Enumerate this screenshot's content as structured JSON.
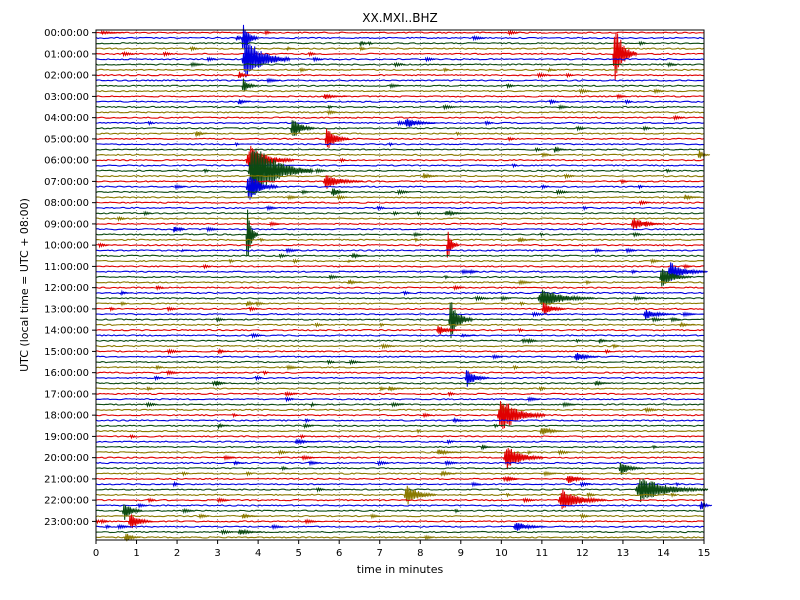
{
  "chart_data": {
    "type": "line",
    "subtype": "helicorder",
    "title": "XX.MXI..BHZ",
    "xlabel": "time in minutes",
    "ylabel": "UTC (local time = UTC + 08:00)",
    "xlim": [
      0,
      15
    ],
    "x_ticks": [
      "0",
      "1",
      "2",
      "3",
      "4",
      "5",
      "6",
      "7",
      "8",
      "9",
      "10",
      "11",
      "12",
      "13",
      "14",
      "15"
    ],
    "y_ticks": [
      "00:00:00",
      "01:00:00",
      "02:00:00",
      "03:00:00",
      "04:00:00",
      "05:00:00",
      "06:00:00",
      "07:00:00",
      "08:00:00",
      "09:00:00",
      "10:00:00",
      "11:00:00",
      "12:00:00",
      "13:00:00",
      "14:00:00",
      "15:00:00",
      "16:00:00",
      "17:00:00",
      "18:00:00",
      "19:00:00",
      "20:00:00",
      "21:00:00",
      "22:00:00",
      "23:00:00"
    ],
    "rows_per_hour": 4,
    "grid": "vertical dotted lines at each minute",
    "trace_colors": [
      "#e00000",
      "#0000e0",
      "#0c4a12",
      "#8a7a00"
    ],
    "baseline_colors": [
      "#cc0000",
      "#0000cc",
      "#0a3d10",
      "#7a6a00"
    ],
    "events": [
      {
        "row": 0,
        "x": 0.1,
        "amp": 0.3,
        "dur": 0.6
      },
      {
        "row": 1,
        "x": 3.45,
        "amp": 0.6,
        "dur": 0.3
      },
      {
        "row": 1,
        "x": 3.6,
        "amp": 3.5,
        "dur": 0.4
      },
      {
        "row": 2,
        "x": 6.5,
        "amp": 0.5,
        "dur": 0.3
      },
      {
        "row": 3,
        "x": 4.7,
        "amp": 0.4,
        "dur": 0.2
      },
      {
        "row": 4,
        "x": 12.75,
        "amp": 6.0,
        "dur": 0.6
      },
      {
        "row": 5,
        "x": 3.6,
        "amp": 4.5,
        "dur": 1.2
      },
      {
        "row": 7,
        "x": 11.15,
        "amp": 0.4,
        "dur": 0.2
      },
      {
        "row": 8,
        "x": 3.5,
        "amp": 1.0,
        "dur": 0.3
      },
      {
        "row": 10,
        "x": 3.6,
        "amp": 1.5,
        "dur": 0.4
      },
      {
        "row": 12,
        "x": 5.6,
        "amp": 0.5,
        "dur": 0.6
      },
      {
        "row": 13,
        "x": 3.5,
        "amp": 0.7,
        "dur": 0.3
      },
      {
        "row": 17,
        "x": 7.6,
        "amp": 1.0,
        "dur": 0.8
      },
      {
        "row": 18,
        "x": 4.8,
        "amp": 2.3,
        "dur": 0.6
      },
      {
        "row": 19,
        "x": 2.45,
        "amp": 0.8,
        "dur": 0.3
      },
      {
        "row": 20,
        "x": 5.65,
        "amp": 2.5,
        "dur": 0.6
      },
      {
        "row": 22,
        "x": 11.3,
        "amp": 0.7,
        "dur": 0.3
      },
      {
        "row": 23,
        "x": 14.85,
        "amp": 1.0,
        "dur": 0.3
      },
      {
        "row": 24,
        "x": 3.7,
        "amp": 3.0,
        "dur": 1.2
      },
      {
        "row": 26,
        "x": 3.75,
        "amp": 6.0,
        "dur": 1.6
      },
      {
        "row": 27,
        "x": 8.05,
        "amp": 0.6,
        "dur": 0.4
      },
      {
        "row": 28,
        "x": 5.6,
        "amp": 1.5,
        "dur": 1.0
      },
      {
        "row": 29,
        "x": 3.7,
        "amp": 3.0,
        "dur": 0.8
      },
      {
        "row": 30,
        "x": 5.8,
        "amp": 1.0,
        "dur": 0.4
      },
      {
        "row": 31,
        "x": 14.5,
        "amp": 0.6,
        "dur": 0.4
      },
      {
        "row": 34,
        "x": 8.6,
        "amp": 0.5,
        "dur": 0.6
      },
      {
        "row": 36,
        "x": 13.2,
        "amp": 1.2,
        "dur": 0.8
      },
      {
        "row": 37,
        "x": 1.9,
        "amp": 0.5,
        "dur": 0.3
      },
      {
        "row": 38,
        "x": 3.7,
        "amp": 6.0,
        "dur": 0.3
      },
      {
        "row": 39,
        "x": 10.4,
        "amp": 0.5,
        "dur": 0.4
      },
      {
        "row": 40,
        "x": 8.65,
        "amp": 3.0,
        "dur": 0.3
      },
      {
        "row": 41,
        "x": 2.1,
        "amp": 0.3,
        "dur": 0.2
      },
      {
        "row": 42,
        "x": 6.3,
        "amp": 0.5,
        "dur": 0.4
      },
      {
        "row": 43,
        "x": 6.2,
        "amp": 0.3,
        "dur": 0.2
      },
      {
        "row": 45,
        "x": 14.1,
        "amp": 1.8,
        "dur": 1.0
      },
      {
        "row": 46,
        "x": 13.9,
        "amp": 2.0,
        "dur": 0.8
      },
      {
        "row": 47,
        "x": 6.2,
        "amp": 0.5,
        "dur": 0.4
      },
      {
        "row": 49,
        "x": 0.6,
        "amp": 0.4,
        "dur": 0.3
      },
      {
        "row": 50,
        "x": 10.9,
        "amp": 2.0,
        "dur": 1.4
      },
      {
        "row": 51,
        "x": 3.7,
        "amp": 0.6,
        "dur": 0.3
      },
      {
        "row": 52,
        "x": 11.0,
        "amp": 1.5,
        "dur": 0.6
      },
      {
        "row": 53,
        "x": 13.5,
        "amp": 1.0,
        "dur": 0.8
      },
      {
        "row": 54,
        "x": 8.7,
        "amp": 4.0,
        "dur": 0.6
      },
      {
        "row": 55,
        "x": 14.4,
        "amp": 0.4,
        "dur": 0.4
      },
      {
        "row": 56,
        "x": 8.4,
        "amp": 1.0,
        "dur": 0.6
      },
      {
        "row": 57,
        "x": 9.0,
        "amp": 0.3,
        "dur": 0.4
      },
      {
        "row": 58,
        "x": 12.4,
        "amp": 0.5,
        "dur": 0.3
      },
      {
        "row": 60,
        "x": 3.0,
        "amp": 0.5,
        "dur": 0.3
      },
      {
        "row": 61,
        "x": 11.8,
        "amp": 1.0,
        "dur": 0.6
      },
      {
        "row": 65,
        "x": 9.1,
        "amp": 1.8,
        "dur": 0.6
      },
      {
        "row": 66,
        "x": 12.3,
        "amp": 0.5,
        "dur": 0.4
      },
      {
        "row": 67,
        "x": 7.2,
        "amp": 0.5,
        "dur": 0.4
      },
      {
        "row": 70,
        "x": 5.3,
        "amp": 0.4,
        "dur": 0.2
      },
      {
        "row": 71,
        "x": 9.95,
        "amp": 1.5,
        "dur": 0.3
      },
      {
        "row": 72,
        "x": 9.9,
        "amp": 3.5,
        "dur": 1.2
      },
      {
        "row": 73,
        "x": 8.8,
        "amp": 0.4,
        "dur": 0.4
      },
      {
        "row": 74,
        "x": 3.0,
        "amp": 0.5,
        "dur": 0.3
      },
      {
        "row": 75,
        "x": 10.95,
        "amp": 1.0,
        "dur": 0.6
      },
      {
        "row": 77,
        "x": 4.9,
        "amp": 0.5,
        "dur": 0.6
      },
      {
        "row": 78,
        "x": 9.5,
        "amp": 0.5,
        "dur": 0.3
      },
      {
        "row": 79,
        "x": 8.4,
        "amp": 0.6,
        "dur": 0.6
      },
      {
        "row": 80,
        "x": 10.05,
        "amp": 2.5,
        "dur": 1.0
      },
      {
        "row": 81,
        "x": 3.4,
        "amp": 0.4,
        "dur": 0.3
      },
      {
        "row": 82,
        "x": 12.9,
        "amp": 1.5,
        "dur": 0.6
      },
      {
        "row": 83,
        "x": 8.5,
        "amp": 0.6,
        "dur": 0.4
      },
      {
        "row": 84,
        "x": 11.6,
        "amp": 1.0,
        "dur": 0.6
      },
      {
        "row": 85,
        "x": 1.9,
        "amp": 0.6,
        "dur": 0.2
      },
      {
        "row": 86,
        "x": 13.3,
        "amp": 2.5,
        "dur": 1.8
      },
      {
        "row": 87,
        "x": 7.6,
        "amp": 2.2,
        "dur": 0.8
      },
      {
        "row": 88,
        "x": 11.4,
        "amp": 2.2,
        "dur": 1.2
      },
      {
        "row": 89,
        "x": 14.9,
        "amp": 1.0,
        "dur": 0.3
      },
      {
        "row": 90,
        "x": 0.65,
        "amp": 2.0,
        "dur": 0.5
      },
      {
        "row": 91,
        "x": 3.6,
        "amp": 0.5,
        "dur": 0.4
      },
      {
        "row": 92,
        "x": 0.8,
        "amp": 1.8,
        "dur": 0.6
      },
      {
        "row": 93,
        "x": 10.3,
        "amp": 1.0,
        "dur": 0.8
      },
      {
        "row": 94,
        "x": 3.5,
        "amp": 0.6,
        "dur": 0.6
      },
      {
        "row": 95,
        "x": 0.7,
        "amp": 1.0,
        "dur": 0.4
      }
    ]
  }
}
